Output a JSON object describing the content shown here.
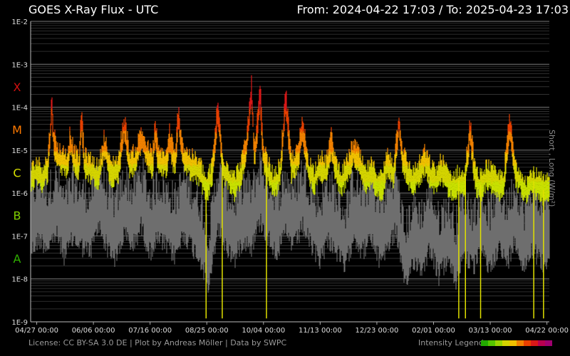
{
  "header": {
    "title": "GOES X-Ray Flux - UTC",
    "from_text": "From: 2024-04-22 17:03",
    "separator": "/",
    "to_text": "To: 2025-04-23 17:03"
  },
  "footer": {
    "credits": "License: CC BY-SA 3.0 DE | Plot by Andreas Möller | Data by SWPC",
    "legend_label": "Intensity Legend",
    "legend_colors": [
      "#22aa00",
      "#55c400",
      "#99d400",
      "#d4d400",
      "#f0c000",
      "#f08000",
      "#e84000",
      "#d81818",
      "#b80050",
      "#a00070"
    ]
  },
  "chart_data": {
    "type": "line",
    "title": "GOES X-Ray Flux - UTC",
    "ylabel": "Short , Long (W/m²)",
    "yscale": "log",
    "ylim": [
      1e-09,
      0.01
    ],
    "y_tick_labels": [
      "1E-2",
      "1E-3",
      "1E-4",
      "1E-5",
      "1E-6",
      "1E-7",
      "1E-8",
      "1E-9"
    ],
    "flare_classes": [
      {
        "label": "X",
        "color": "#d01010",
        "flux_level": 0.0003
      },
      {
        "label": "M",
        "color": "#ff7a00",
        "flux_level": 3e-05
      },
      {
        "label": "C",
        "color": "#d8e000",
        "flux_level": 3e-06
      },
      {
        "label": "B",
        "color": "#80d000",
        "flux_level": 3e-07
      },
      {
        "label": "A",
        "color": "#30b000",
        "flux_level": 3e-08
      }
    ],
    "x_tick_labels": [
      "04/27 00:00",
      "06/06 00:00",
      "07/16 00:00",
      "08/25 00:00",
      "10/04 00:00",
      "11/13 00:00",
      "12/23 00:00",
      "02/01 00:00",
      "03/13 00:00",
      "04/22 00:00"
    ],
    "xlim_days": [
      0,
      366
    ],
    "x_tick_days": [
      4.3,
      44.3,
      84.3,
      124.3,
      164.3,
      204.3,
      244.3,
      284.3,
      324.3,
      364.3
    ],
    "series": [
      {
        "name": "Long",
        "color_by_intensity": true,
        "values": [
          [
            0,
            2e-06
          ],
          [
            4,
            3.5e-06
          ],
          [
            8,
            2.5e-06
          ],
          [
            12,
            4e-06
          ],
          [
            14,
            3e-05
          ],
          [
            15,
            0.00012
          ],
          [
            16,
            2.5e-05
          ],
          [
            18,
            8e-06
          ],
          [
            22,
            6e-06
          ],
          [
            26,
            5e-06
          ],
          [
            28,
            2e-05
          ],
          [
            30,
            7e-06
          ],
          [
            34,
            4e-06
          ],
          [
            36,
            6e-05
          ],
          [
            38,
            5e-06
          ],
          [
            44,
            3.5e-06
          ],
          [
            48,
            2.5e-06
          ],
          [
            52,
            1.5e-05
          ],
          [
            56,
            3e-06
          ],
          [
            62,
            4e-06
          ],
          [
            66,
            4e-05
          ],
          [
            70,
            5e-06
          ],
          [
            74,
            6e-06
          ],
          [
            78,
            2e-05
          ],
          [
            82,
            8e-06
          ],
          [
            86,
            5e-06
          ],
          [
            88,
            3e-05
          ],
          [
            90,
            6e-06
          ],
          [
            96,
            5e-06
          ],
          [
            98,
            2e-05
          ],
          [
            102,
            4e-06
          ],
          [
            104,
            6e-05
          ],
          [
            108,
            7e-06
          ],
          [
            112,
            5e-06
          ],
          [
            116,
            4e-06
          ],
          [
            120,
            3e-06
          ],
          [
            124,
            1.2e-06
          ],
          [
            128,
            3e-06
          ],
          [
            132,
            8e-05
          ],
          [
            136,
            4e-06
          ],
          [
            140,
            2.5e-06
          ],
          [
            144,
            1.5e-06
          ],
          [
            148,
            3e-06
          ],
          [
            152,
            1e-05
          ],
          [
            156,
            0.00025
          ],
          [
            158,
            6e-06
          ],
          [
            162,
            0.0002
          ],
          [
            164,
            8e-06
          ],
          [
            168,
            3e-06
          ],
          [
            172,
            1.5e-06
          ],
          [
            176,
            3e-06
          ],
          [
            180,
            0.00015
          ],
          [
            184,
            4e-06
          ],
          [
            188,
            6e-06
          ],
          [
            192,
            3e-05
          ],
          [
            196,
            4e-06
          ],
          [
            200,
            2e-06
          ],
          [
            204,
            5e-06
          ],
          [
            208,
            3e-06
          ],
          [
            212,
            1.5e-05
          ],
          [
            216,
            3e-06
          ],
          [
            220,
            2e-06
          ],
          [
            224,
            4e-06
          ],
          [
            228,
            1e-05
          ],
          [
            232,
            5e-06
          ],
          [
            236,
            2e-06
          ],
          [
            240,
            3e-06
          ],
          [
            244,
            2e-06
          ],
          [
            248,
            1.5e-06
          ],
          [
            252,
            6e-06
          ],
          [
            256,
            3e-06
          ],
          [
            260,
            5e-05
          ],
          [
            262,
            8e-06
          ],
          [
            266,
            3e-06
          ],
          [
            270,
            2e-06
          ],
          [
            274,
            3e-06
          ],
          [
            278,
            6e-06
          ],
          [
            282,
            3e-06
          ],
          [
            286,
            2e-06
          ],
          [
            290,
            4e-06
          ],
          [
            294,
            2e-06
          ],
          [
            298,
            1.5e-06
          ],
          [
            302,
            2e-06
          ],
          [
            306,
            1.5e-06
          ],
          [
            310,
            3e-05
          ],
          [
            314,
            2e-06
          ],
          [
            318,
            1.5e-06
          ],
          [
            322,
            3e-06
          ],
          [
            326,
            2e-06
          ],
          [
            330,
            1.5e-06
          ],
          [
            334,
            2e-06
          ],
          [
            338,
            4e-05
          ],
          [
            342,
            3e-06
          ],
          [
            346,
            2e-06
          ],
          [
            350,
            1.2e-06
          ],
          [
            354,
            2e-06
          ],
          [
            358,
            1.5e-06
          ],
          [
            362,
            1.2e-06
          ],
          [
            366,
            1.2e-06
          ]
        ]
      },
      {
        "name": "Short",
        "color": "#6e6e6e",
        "values": [
          [
            0,
            1.5e-07
          ],
          [
            6,
            3e-07
          ],
          [
            12,
            2e-07
          ],
          [
            18,
            4e-07
          ],
          [
            24,
            1.2e-07
          ],
          [
            30,
            3e-07
          ],
          [
            36,
            2e-07
          ],
          [
            42,
            1.5e-07
          ],
          [
            48,
            6e-07
          ],
          [
            54,
            2e-07
          ],
          [
            60,
            1e-07
          ],
          [
            66,
            4e-07
          ],
          [
            72,
            2e-07
          ],
          [
            78,
            6e-07
          ],
          [
            84,
            1.5e-07
          ],
          [
            90,
            3e-07
          ],
          [
            96,
            2e-07
          ],
          [
            102,
            1.2e-07
          ],
          [
            108,
            4e-07
          ],
          [
            114,
            2e-07
          ],
          [
            120,
            1e-07
          ],
          [
            126,
            2e-08
          ],
          [
            132,
            6e-07
          ],
          [
            138,
            2e-07
          ],
          [
            144,
            1e-07
          ],
          [
            150,
            3e-07
          ],
          [
            156,
            2e-07
          ],
          [
            162,
            8e-07
          ],
          [
            168,
            3e-07
          ],
          [
            174,
            1.5e-07
          ],
          [
            180,
            4e-07
          ],
          [
            186,
            2e-07
          ],
          [
            192,
            6e-07
          ],
          [
            198,
            2e-07
          ],
          [
            204,
            1e-07
          ],
          [
            210,
            3e-07
          ],
          [
            216,
            1.5e-07
          ],
          [
            222,
            6e-08
          ],
          [
            228,
            4e-07
          ],
          [
            234,
            1.5e-07
          ],
          [
            240,
            3e-07
          ],
          [
            246,
            1e-07
          ],
          [
            252,
            2e-07
          ],
          [
            258,
            5e-07
          ],
          [
            264,
            2e-08
          ],
          [
            270,
            1e-07
          ],
          [
            276,
            6e-08
          ],
          [
            282,
            2e-07
          ],
          [
            288,
            4e-08
          ],
          [
            294,
            1e-07
          ],
          [
            300,
            3e-08
          ],
          [
            306,
            1.5e-07
          ],
          [
            312,
            6e-08
          ],
          [
            318,
            1.5e-07
          ],
          [
            324,
            6e-08
          ],
          [
            330,
            2e-07
          ],
          [
            336,
            8e-08
          ],
          [
            342,
            3e-07
          ],
          [
            348,
            6e-08
          ],
          [
            354,
            2e-07
          ],
          [
            360,
            8e-08
          ],
          [
            366,
            1.2e-07
          ]
        ]
      }
    ],
    "dropouts_days": [
      123.8,
      135.2,
      166.4,
      302.1,
      306.8,
      317.5,
      355.0,
      361.9
    ],
    "grid": true
  }
}
